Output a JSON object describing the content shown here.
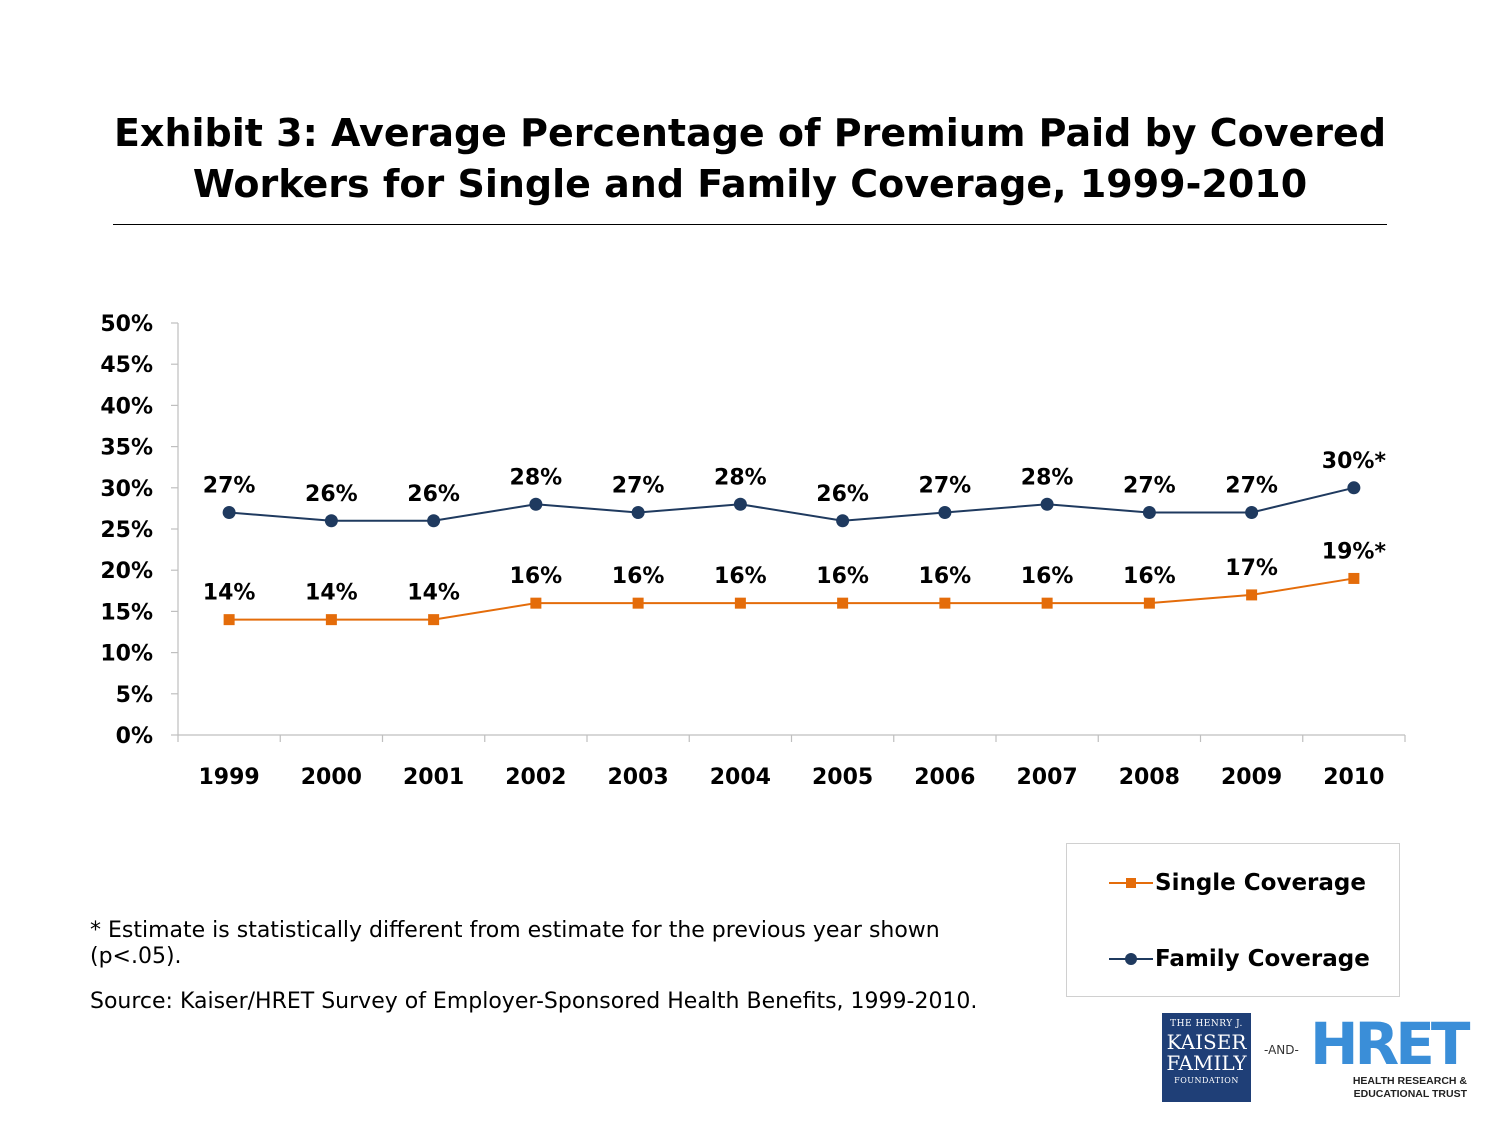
{
  "title_line1": "Exhibit 3: Average Percentage of Premium Paid by Covered",
  "title_line2": "Workers for Single and Family Coverage, 1999-2010",
  "chart_data": {
    "type": "line",
    "categories": [
      "1999",
      "2000",
      "2001",
      "2002",
      "2003",
      "2004",
      "2005",
      "2006",
      "2007",
      "2008",
      "2009",
      "2010"
    ],
    "y_ticks": [
      "0%",
      "5%",
      "10%",
      "15%",
      "20%",
      "25%",
      "30%",
      "35%",
      "40%",
      "45%",
      "50%"
    ],
    "ylim": [
      0,
      50
    ],
    "grid": false,
    "legend_position": "bottom-right",
    "series": [
      {
        "name": "Single Coverage",
        "color": "#e46c0a",
        "marker": "square",
        "values": [
          14,
          14,
          14,
          16,
          16,
          16,
          16,
          16,
          16,
          16,
          17,
          19
        ],
        "labels": [
          "14%",
          "14%",
          "14%",
          "16%",
          "16%",
          "16%",
          "16%",
          "16%",
          "16%",
          "16%",
          "17%",
          "19%*"
        ]
      },
      {
        "name": "Family Coverage",
        "color": "#1f3a5f",
        "marker": "circle",
        "values": [
          27,
          26,
          26,
          28,
          27,
          28,
          26,
          27,
          28,
          27,
          27,
          30
        ],
        "labels": [
          "27%",
          "26%",
          "26%",
          "28%",
          "27%",
          "28%",
          "26%",
          "27%",
          "28%",
          "27%",
          "27%",
          "30%*"
        ]
      }
    ]
  },
  "footnote": "* Estimate is statistically different from estimate for the previous year shown (p<.05).",
  "source": "Source:  Kaiser/HRET Survey of Employer-Sponsored Health Benefits, 1999-2010.",
  "logos": {
    "kff_line1": "THE HENRY J.",
    "kff_line2": "KAISER",
    "kff_line3": "FAMILY",
    "kff_line4": "FOUNDATION",
    "and": "-AND-",
    "hret_mark": "HRET",
    "hret_sub1": "HEALTH RESEARCH &",
    "hret_sub2": "EDUCATIONAL TRUST",
    "kff_color": "#1f3f77",
    "hret_color": "#3a8ed8"
  }
}
